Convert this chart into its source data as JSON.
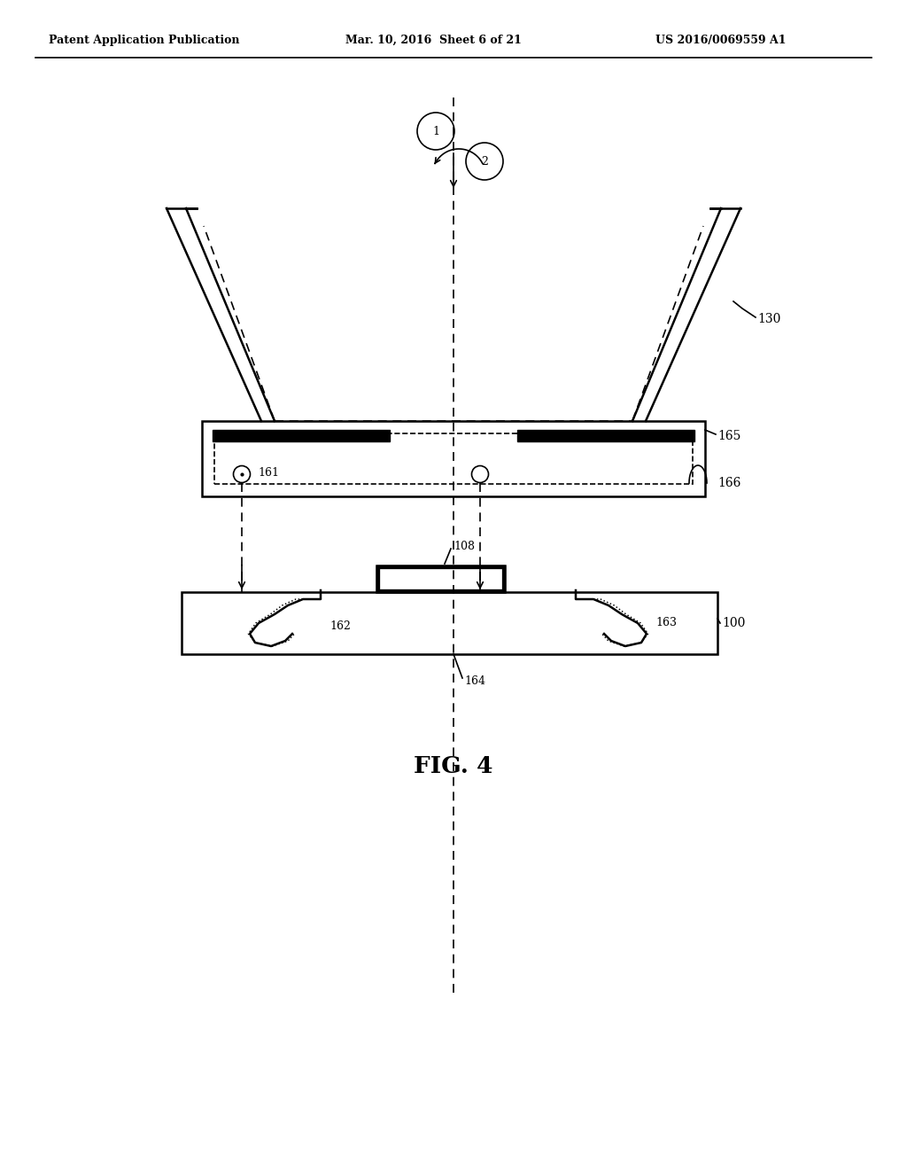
{
  "bg_color": "#ffffff",
  "line_color": "#000000",
  "header_left": "Patent Application Publication",
  "header_mid": "Mar. 10, 2016  Sheet 6 of 21",
  "header_right": "US 2016/0069559 A1",
  "fig_label": "FIG. 4",
  "label_130": "130",
  "label_165": "165",
  "label_166": "166",
  "label_161": "161",
  "label_162": "162",
  "label_163": "163",
  "label_164": "164",
  "label_100": "100",
  "label_108": "108",
  "label_1": "1",
  "label_2": "2"
}
